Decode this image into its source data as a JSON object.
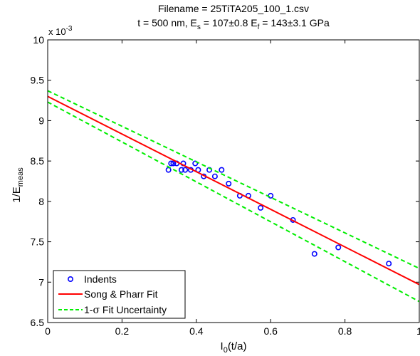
{
  "chart_data": {
    "type": "scatter",
    "title_line1": "Filename = 25TiTA205_100_1.csv",
    "title_line2": {
      "prefix": "t = 500 nm, E",
      "es_sub": "s",
      "middle": " = 107±0.8 E",
      "ef_sub": "f",
      "suffix": " = 143±3.1 GPa"
    },
    "xlabel": {
      "main": "I",
      "sub": "0",
      "rest": "(t/a)"
    },
    "ylabel": {
      "main": "1/E",
      "sub": "meas"
    },
    "y_multiplier": {
      "base": "x 10",
      "exp": "-3"
    },
    "xlim": [
      0,
      1
    ],
    "ylim": [
      6.5,
      10
    ],
    "x_ticks": [
      0,
      0.2,
      0.4,
      0.6,
      0.8,
      1
    ],
    "x_tick_labels": [
      "0",
      "0.2",
      "0.4",
      "0.6",
      "0.8",
      "1"
    ],
    "y_ticks": [
      6.5,
      7,
      7.5,
      8,
      8.5,
      9,
      9.5,
      10
    ],
    "y_tick_labels": [
      "6.5",
      "7",
      "7.5",
      "8",
      "8.5",
      "9",
      "9.5",
      "10"
    ],
    "grid": false,
    "legend_position": "bottom-left",
    "series": [
      {
        "name": "Indents",
        "kind": "markers",
        "color": "#0000ff",
        "x": [
          0.325,
          0.332,
          0.338,
          0.347,
          0.36,
          0.365,
          0.37,
          0.385,
          0.397,
          0.405,
          0.42,
          0.435,
          0.45,
          0.468,
          0.487,
          0.517,
          0.54,
          0.573,
          0.6,
          0.66,
          0.718,
          0.782,
          0.918
        ],
        "y": [
          8.39,
          8.47,
          8.47,
          8.47,
          8.39,
          8.47,
          8.39,
          8.39,
          8.47,
          8.39,
          8.31,
          8.39,
          8.31,
          8.39,
          8.22,
          8.07,
          8.07,
          7.92,
          8.07,
          7.77,
          7.35,
          7.43,
          7.23
        ]
      },
      {
        "name": "Song & Pharr Fit",
        "kind": "line",
        "color": "#ff0000",
        "x": [
          0,
          1
        ],
        "y": [
          9.3,
          6.97
        ]
      },
      {
        "name": "1-σ Fit Uncertainty",
        "kind": "dashed",
        "color": "#00ee00",
        "x": [
          0,
          1
        ],
        "y": [
          9.37,
          7.17
        ]
      },
      {
        "name": "",
        "kind": "dashed",
        "color": "#00ee00",
        "x": [
          0,
          1
        ],
        "y": [
          9.23,
          6.76
        ]
      }
    ],
    "legend": {
      "indents": "Indents",
      "fit": "Song & Pharr Fit",
      "uncert_prefix": "1-",
      "uncert_sigma": "σ",
      "uncert_suffix": " Fit Uncertainty"
    }
  }
}
